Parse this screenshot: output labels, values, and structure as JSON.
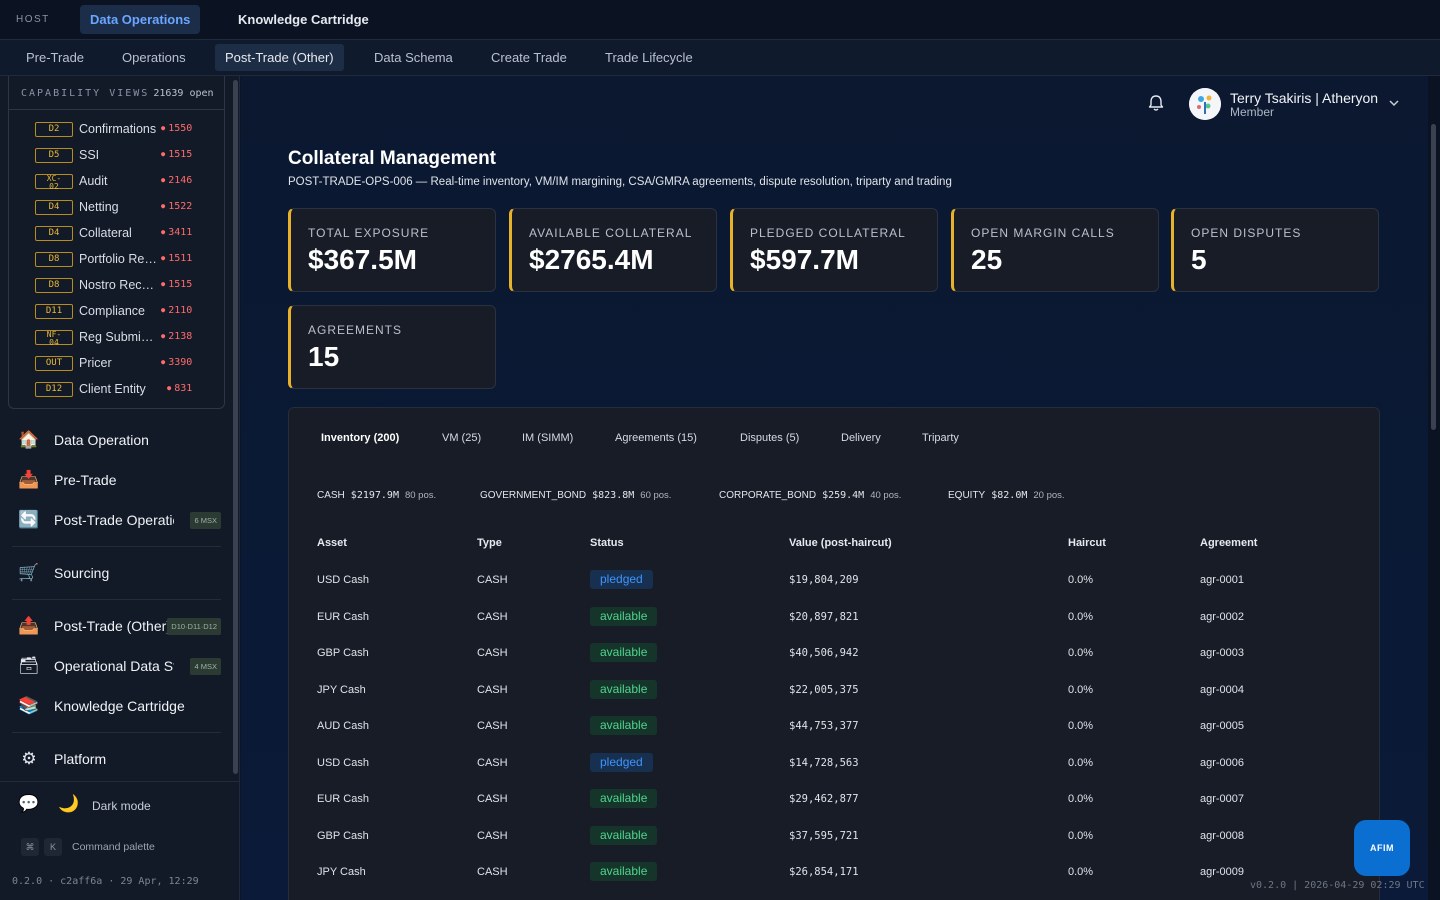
{
  "host": {
    "label": "HOST",
    "tabs": [
      {
        "label": "Data Operations",
        "active": true
      },
      {
        "label": "Knowledge Cartridge",
        "active": false
      }
    ]
  },
  "subtabs": [
    {
      "label": "Pre-Trade",
      "active": false
    },
    {
      "label": "Operations",
      "active": false
    },
    {
      "label": "Post-Trade (Other)",
      "active": true
    },
    {
      "label": "Data Schema",
      "active": false
    },
    {
      "label": "Create Trade",
      "active": false
    },
    {
      "label": "Trade Lifecycle",
      "active": false
    }
  ],
  "sidebar": {
    "capability": {
      "title": "CAPABILITY VIEWS",
      "count": "21639 open",
      "rows": [
        {
          "badge": "D2",
          "name": "Confirmations",
          "count": "1550"
        },
        {
          "badge": "D5",
          "name": "SSI",
          "count": "1515"
        },
        {
          "badge": "XC-\n02",
          "name": "Audit",
          "count": "2146"
        },
        {
          "badge": "D4",
          "name": "Netting",
          "count": "1522"
        },
        {
          "badge": "D4",
          "name": "Collateral",
          "count": "3411"
        },
        {
          "badge": "D8",
          "name": "Portfolio Reconciliation",
          "count": "1511"
        },
        {
          "badge": "D8",
          "name": "Nostro Reconciliation",
          "count": "1515"
        },
        {
          "badge": "D11",
          "name": "Compliance",
          "count": "2110"
        },
        {
          "badge": "NF-\n04",
          "name": "Reg Submissions",
          "count": "2138"
        },
        {
          "badge": "OUT",
          "name": "Pricer",
          "count": "3390"
        },
        {
          "badge": "D12",
          "name": "Client Entity",
          "count": "831"
        }
      ]
    },
    "nav": [
      {
        "icon": "house-icon",
        "label": "Data Operation",
        "pill": ""
      },
      {
        "icon": "inbox-tray-icon",
        "label": "Pre-Trade",
        "pill": ""
      },
      {
        "icon": "cycle-arrows-icon",
        "label": "Post-Trade Operations",
        "pill": "6 MSX"
      },
      {
        "icon": "shopping-cart-icon",
        "label": "Sourcing",
        "pill": ""
      },
      {
        "icon": "outbox-tray-icon",
        "label": "Post-Trade (Other)",
        "pill": "D10·D11·D12"
      },
      {
        "icon": "file-box-icon",
        "label": "Operational Data Store",
        "pill": "4 MSX"
      },
      {
        "icon": "books-icon",
        "label": "Knowledge Cartridge",
        "pill": ""
      },
      {
        "icon": "gear-icon",
        "label": "Platform",
        "pill": ""
      }
    ],
    "dark_mode_label": "Dark mode",
    "command_keys": [
      "⌘",
      "K"
    ],
    "command_label": "Command palette",
    "version": "0.2.0 · c2aff6a · 29 Apr, 12:29"
  },
  "user": {
    "name": "Terry Tsakiris | Atheryon",
    "role": "Member"
  },
  "page": {
    "title": "Collateral Management",
    "subtitle": "POST-TRADE-OPS-006 — Real-time inventory, VM/IM margining, CSA/GMRA agreements, dispute resolution, triparty and trading"
  },
  "kpis": [
    {
      "label": "TOTAL EXPOSURE",
      "value": "$367.5M"
    },
    {
      "label": "AVAILABLE COLLATERAL",
      "value": "$2765.4M"
    },
    {
      "label": "PLEDGED COLLATERAL",
      "value": "$597.7M"
    },
    {
      "label": "OPEN MARGIN CALLS",
      "value": "25"
    },
    {
      "label": "OPEN DISPUTES",
      "value": "5"
    },
    {
      "label": "AGREEMENTS",
      "value": "15"
    }
  ],
  "panel": {
    "tabs": [
      {
        "label": "Inventory (200)",
        "active": true
      },
      {
        "label": "VM (25)",
        "active": false
      },
      {
        "label": "IM (SIMM)",
        "active": false
      },
      {
        "label": "Agreements (15)",
        "active": false
      },
      {
        "label": "Disputes (5)",
        "active": false
      },
      {
        "label": "Delivery",
        "active": false
      },
      {
        "label": "Triparty",
        "active": false
      }
    ],
    "summary": [
      {
        "type": "CASH",
        "value": "$2197.9M",
        "positions": "80 pos."
      },
      {
        "type": "GOVERNMENT_BOND",
        "value": "$823.8M",
        "positions": "60 pos."
      },
      {
        "type": "CORPORATE_BOND",
        "value": "$259.4M",
        "positions": "40 pos."
      },
      {
        "type": "EQUITY",
        "value": "$82.0M",
        "positions": "20 pos."
      }
    ],
    "columns": [
      "Asset",
      "Type",
      "Status",
      "Value (post-haircut)",
      "Haircut",
      "Agreement"
    ],
    "rows": [
      {
        "asset": "USD Cash",
        "type": "CASH",
        "status": "pledged",
        "value": "$19,804,209",
        "haircut": "0.0%",
        "agreement": "agr-0001"
      },
      {
        "asset": "EUR Cash",
        "type": "CASH",
        "status": "available",
        "value": "$20,897,821",
        "haircut": "0.0%",
        "agreement": "agr-0002"
      },
      {
        "asset": "GBP Cash",
        "type": "CASH",
        "status": "available",
        "value": "$40,506,942",
        "haircut": "0.0%",
        "agreement": "agr-0003"
      },
      {
        "asset": "JPY Cash",
        "type": "CASH",
        "status": "available",
        "value": "$22,005,375",
        "haircut": "0.0%",
        "agreement": "agr-0004"
      },
      {
        "asset": "AUD Cash",
        "type": "CASH",
        "status": "available",
        "value": "$44,753,377",
        "haircut": "0.0%",
        "agreement": "agr-0005"
      },
      {
        "asset": "USD Cash",
        "type": "CASH",
        "status": "pledged",
        "value": "$14,728,563",
        "haircut": "0.0%",
        "agreement": "agr-0006"
      },
      {
        "asset": "EUR Cash",
        "type": "CASH",
        "status": "available",
        "value": "$29,462,877",
        "haircut": "0.0%",
        "agreement": "agr-0007"
      },
      {
        "asset": "GBP Cash",
        "type": "CASH",
        "status": "available",
        "value": "$37,595,721",
        "haircut": "0.0%",
        "agreement": "agr-0008"
      },
      {
        "asset": "JPY Cash",
        "type": "CASH",
        "status": "available",
        "value": "$26,854,171",
        "haircut": "0.0%",
        "agreement": "agr-0009"
      }
    ]
  },
  "assistant_button": "AFIM",
  "footer_version": "v0.2.0 | 2026-04-29 02:29 UTC",
  "colors": {
    "accent": "#e8b12a",
    "available": "#4fd48f",
    "pledged": "#3f93ff",
    "alert": "#ff6b6b"
  }
}
